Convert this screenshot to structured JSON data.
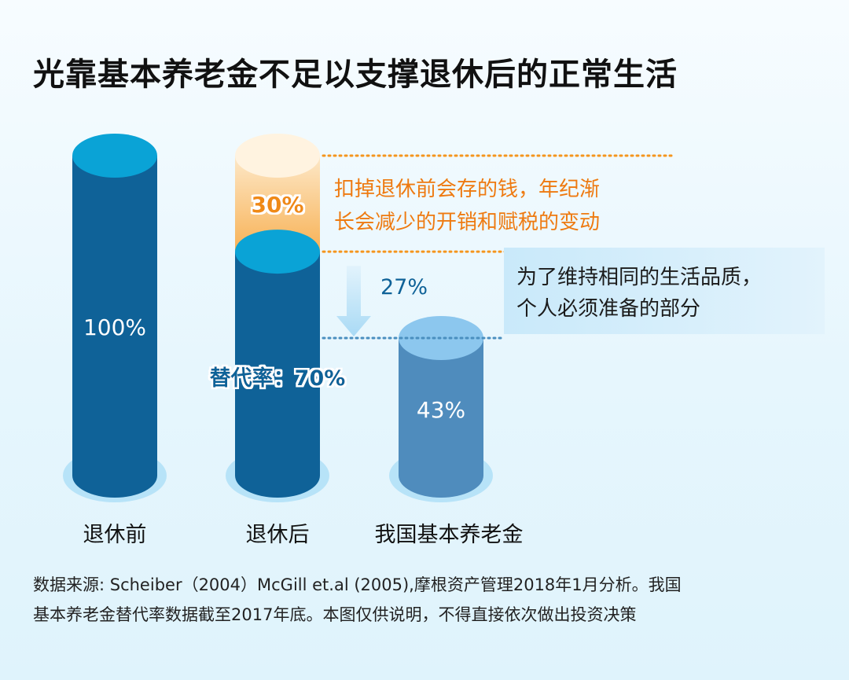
{
  "title": "光靠基本养老金不足以支撑退休后的正常生活",
  "chart_data": {
    "type": "bar",
    "categories": [
      "退休前",
      "退休后",
      "我国基本养老金"
    ],
    "values": [
      100,
      70,
      43
    ],
    "value_labels": [
      "100%",
      "替代率：70%",
      "43%"
    ],
    "gap_segments": [
      {
        "category": "退休后",
        "value": 30,
        "label": "30%"
      },
      {
        "category": "我国基本养老金",
        "value": 27,
        "label": "27%"
      }
    ],
    "ylim": [
      0,
      100
    ],
    "colors": {
      "bar_dark": "#0f6298",
      "bar_light": "#4f8cbd",
      "gap_orange": "#f7a53c",
      "arrow": "#bfe3f7",
      "dotted_orange": "#f5961e",
      "dotted_blue": "#4a8fbf",
      "halo": "#a8dcf6"
    }
  },
  "annotations": {
    "orange_note": [
      "扣掉退休前会存的钱，年纪渐",
      "长会减少的开销和赋税的变动"
    ],
    "blue_note": [
      "为了维持相同的生活品质，",
      "个人必须准备的部分"
    ]
  },
  "source": [
    "数据来源: Scheiber（2004）McGill et.al (2005),摩根资产管理2018年1月分析。我国",
    "基本养老金替代率数据截至2017年底。本图仅供说明，不得直接依次做出投资决策"
  ]
}
